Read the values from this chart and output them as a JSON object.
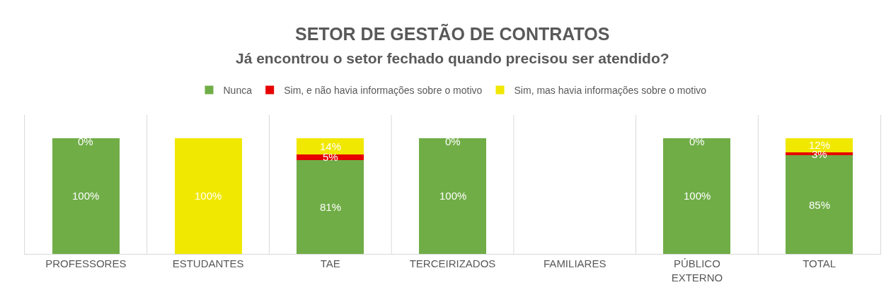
{
  "chart_data": {
    "type": "bar",
    "stacked": true,
    "title": "SETOR DE GESTÃO DE CONTRATOS",
    "subtitle": "Já encontrou o setor fechado quando precisou ser atendido?",
    "categories": [
      "PROFESSORES",
      "ESTUDANTES",
      "TAE",
      "TERCEIRIZADOS",
      "FAMILIARES",
      "PÚBLICO EXTERNO",
      "TOTAL"
    ],
    "series": [
      {
        "name": "Nunca",
        "color": "#70ad47",
        "values": [
          100,
          0,
          81,
          100,
          null,
          100,
          85
        ],
        "value_labels": [
          "100%",
          null,
          "81%",
          "100%",
          null,
          "100%",
          "85%"
        ]
      },
      {
        "name": "Sim, e não havia informações sobre o motivo",
        "color": "#e60000",
        "values": [
          0,
          0,
          5,
          0,
          null,
          0,
          3
        ],
        "value_labels": [
          null,
          null,
          "5%",
          null,
          null,
          null,
          "3%"
        ]
      },
      {
        "name": "Sim, mas havia informações sobre o motivo",
        "color": "#f0e800",
        "values": [
          0,
          100,
          14,
          0,
          null,
          0,
          12
        ],
        "value_labels": [
          "0%",
          "100%",
          "14%",
          "0%",
          null,
          "0%",
          "12%"
        ]
      }
    ],
    "ylim": [
      0,
      120
    ],
    "tick_labels": "x",
    "grid": "x",
    "legend": "top"
  }
}
